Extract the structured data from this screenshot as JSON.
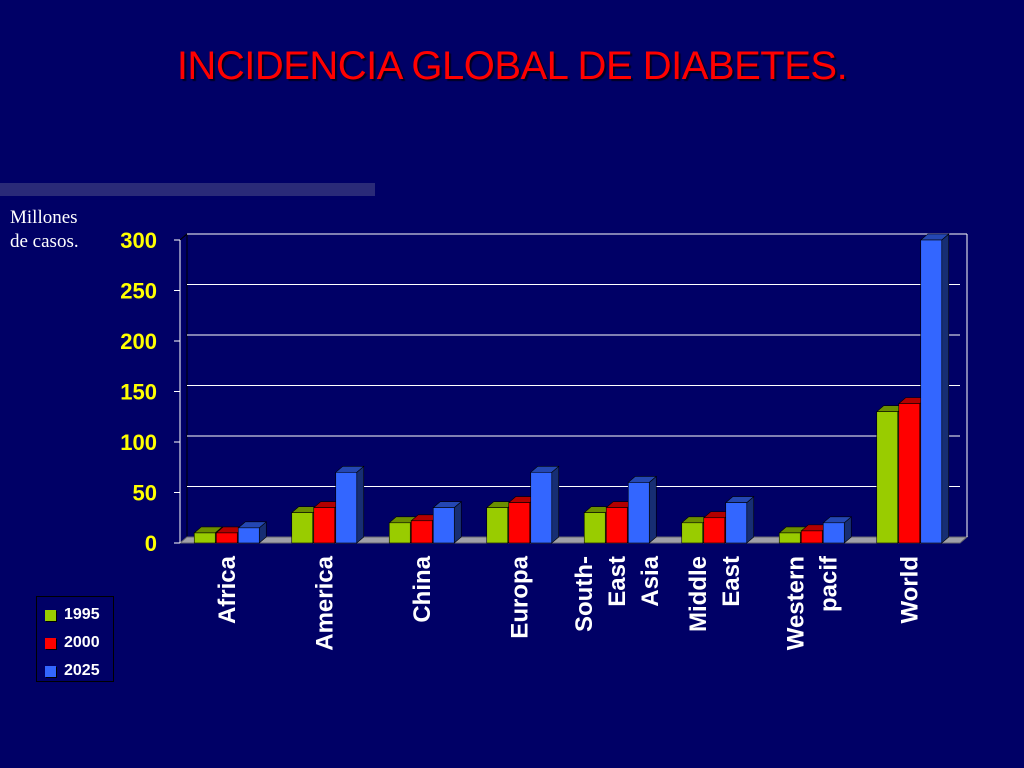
{
  "slide": {
    "title": "INCIDENCIA GLOBAL DE DIABETES.",
    "y_unit_line1": "Millones",
    "y_unit_line2": "de casos."
  },
  "chart_data": {
    "type": "bar",
    "categories": [
      [
        "Africa"
      ],
      [
        "America"
      ],
      [
        "China"
      ],
      [
        "Europa"
      ],
      [
        "South-",
        "East",
        "Asia"
      ],
      [
        "Middle",
        "East"
      ],
      [
        "Western",
        "pacif"
      ],
      [
        "World"
      ]
    ],
    "series": [
      {
        "name": "1995",
        "color": "#99cc00",
        "values": [
          10,
          30,
          20,
          35,
          30,
          20,
          10,
          130
        ]
      },
      {
        "name": "2000",
        "color": "#ff0000",
        "values": [
          10,
          35,
          22,
          40,
          35,
          25,
          12,
          138
        ]
      },
      {
        "name": "2025",
        "color": "#3366ff",
        "values": [
          15,
          70,
          35,
          70,
          60,
          40,
          20,
          300
        ]
      }
    ],
    "ylim": [
      0,
      300
    ],
    "yticks": [
      "0",
      "50",
      "100",
      "150",
      "200",
      "250",
      "300"
    ],
    "grid": true,
    "legend_position": "bottom-left"
  }
}
